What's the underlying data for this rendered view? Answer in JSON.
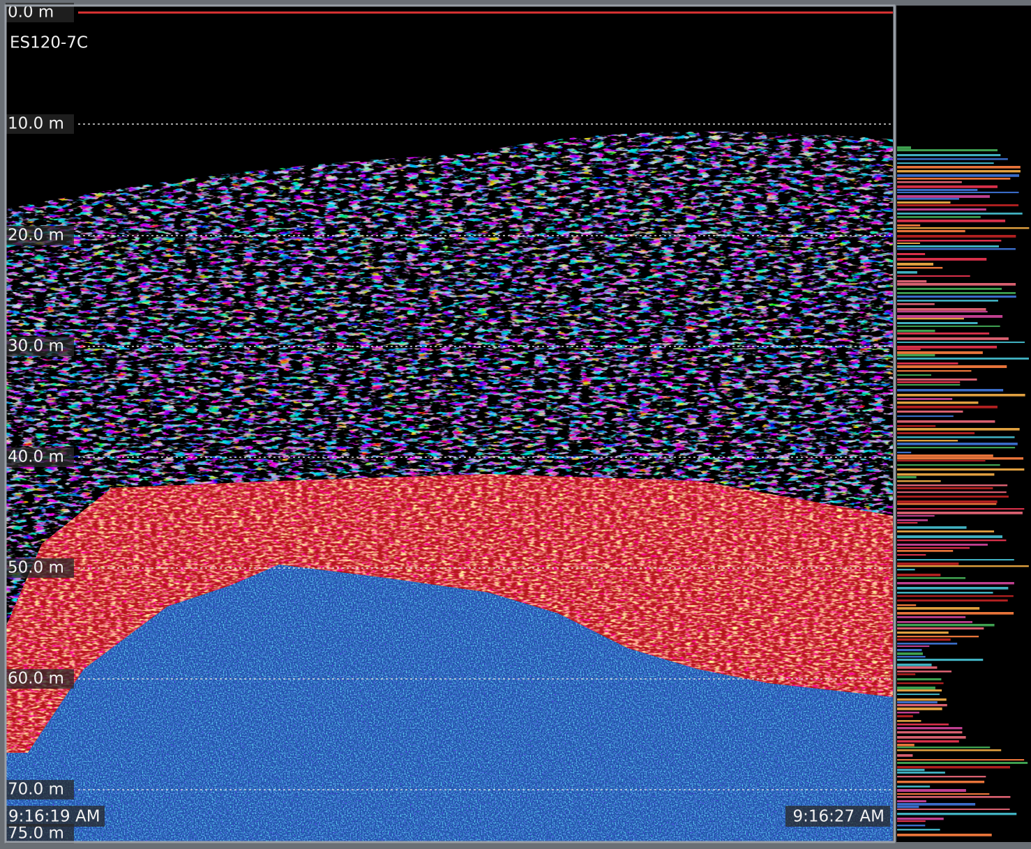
{
  "channel": "ES120-7C",
  "depth_labels": [
    "0.0 m",
    "10.0 m",
    "20.0 m",
    "30.0 m",
    "40.0 m",
    "50.0 m",
    "60.0 m",
    "70.0 m",
    "75.0 m"
  ],
  "start_time": "9:16:19 AM",
  "end_time": "9:16:27 AM"
}
